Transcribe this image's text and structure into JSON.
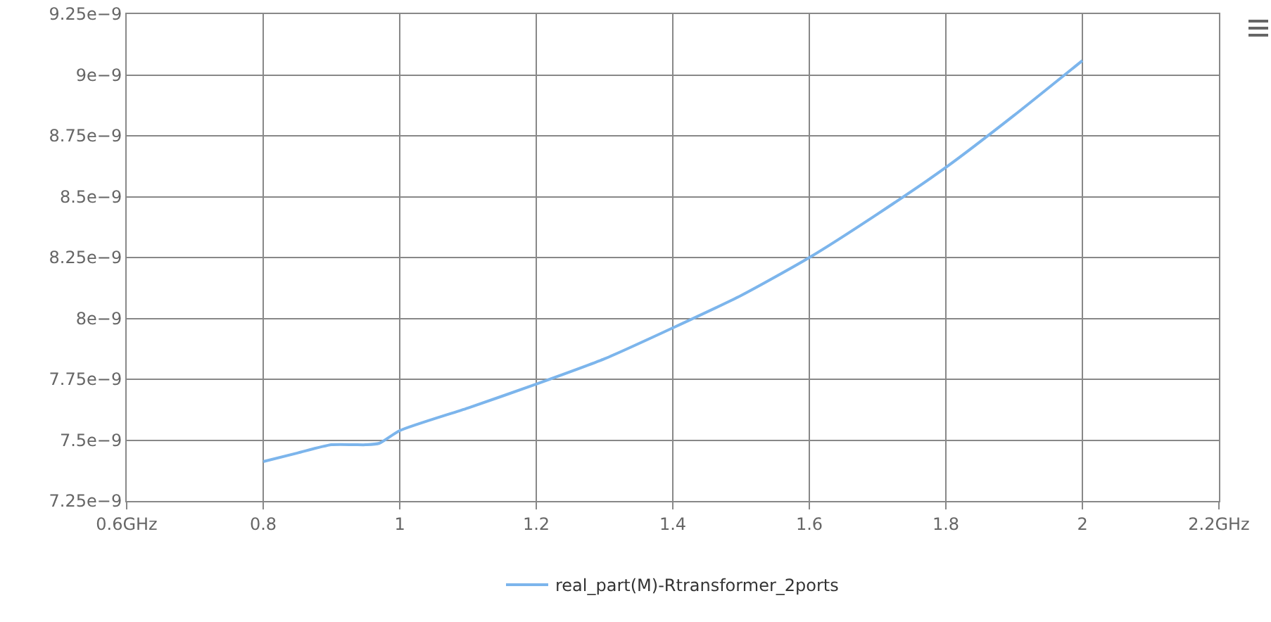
{
  "chart_data": {
    "type": "line",
    "x": [
      0.8,
      0.85,
      0.9,
      0.95,
      0.97,
      1.0,
      1.1,
      1.2,
      1.3,
      1.4,
      1.5,
      1.6,
      1.7,
      1.8,
      1.9,
      2.0
    ],
    "series": [
      {
        "name": "real_part(M)-Rtransformer_2ports",
        "color": "#7cb5ec",
        "values": [
          7.412e-09,
          7.447e-09,
          7.481e-09,
          7.481e-09,
          7.487e-09,
          7.539e-09,
          7.632e-09,
          7.73e-09,
          7.834e-09,
          7.961e-09,
          8.094e-09,
          8.25e-09,
          8.429e-09,
          8.62e-09,
          8.834e-09,
          9.059e-09
        ]
      }
    ],
    "xlim": [
      0.6,
      2.2
    ],
    "xticks": [
      {
        "value": 0.6,
        "label": "0.6GHz"
      },
      0.8,
      1,
      1.2,
      1.4,
      1.6,
      1.8,
      2,
      {
        "value": 2.2,
        "label": "2.2GHz"
      }
    ],
    "ylim": [
      7.25e-09,
      9.25e-09
    ],
    "yticks": [
      {
        "value": 7.25e-09,
        "label": "7.25e−9"
      },
      {
        "value": 7.5e-09,
        "label": "7.5e−9"
      },
      {
        "value": 7.75e-09,
        "label": "7.75e−9"
      },
      {
        "value": 8e-09,
        "label": "8e−9"
      },
      {
        "value": 8.25e-09,
        "label": "8.25e−9"
      },
      {
        "value": 8.5e-09,
        "label": "8.5e−9"
      },
      {
        "value": 8.75e-09,
        "label": "8.75e−9"
      },
      {
        "value": 9e-09,
        "label": "9e−9"
      },
      {
        "value": 9.25e-09,
        "label": "9.25e−9"
      }
    ],
    "grid": true,
    "legend": "bottom",
    "marker": "none",
    "line_style": "solid"
  }
}
